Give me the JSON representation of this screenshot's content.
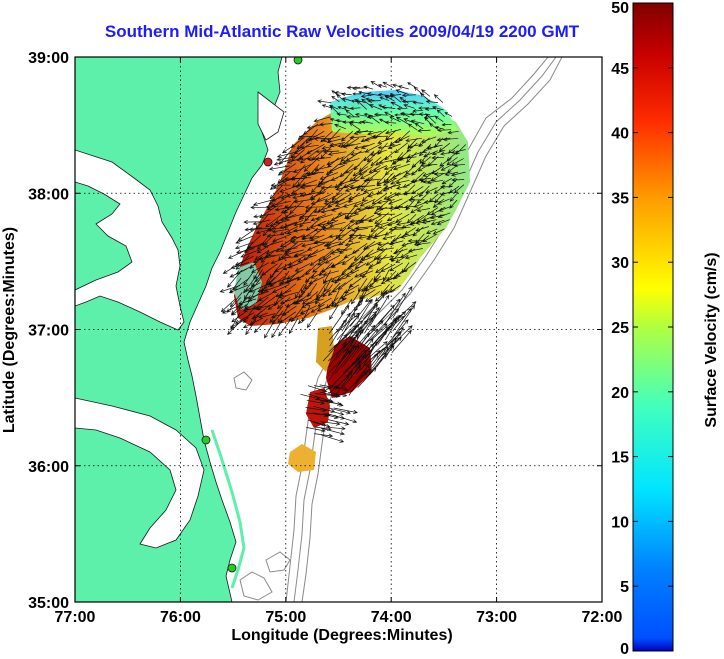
{
  "title": "Southern Mid-Atlantic Raw Velocities 2009/04/19 2200 GMT",
  "x_axis": {
    "label": "Longitude (Degrees:Minutes)",
    "ticks": [
      "77:00",
      "76:00",
      "75:00",
      "74:00",
      "73:00",
      "72:00"
    ]
  },
  "y_axis": {
    "label": "Latitude (Degrees:Minutes)",
    "ticks": [
      "39:00",
      "38:00",
      "37:00",
      "36:00",
      "35:00"
    ]
  },
  "colorbar": {
    "label": "Surface Velocity (cm/s)",
    "ticks": [
      "50",
      "45",
      "40",
      "35",
      "30",
      "25",
      "20",
      "15",
      "10",
      "5",
      "0"
    ],
    "range": [
      0,
      50
    ],
    "colormap": "jet"
  },
  "colors": {
    "title": "#1c1cff",
    "land": "#5cf0aa",
    "bathymetry": "#8a8a8a",
    "grid": "#000000",
    "site_marker": "#22cc22"
  },
  "map": {
    "lon_range": [
      -77,
      -72
    ],
    "lat_range": [
      35,
      39
    ],
    "grid": "dotted"
  }
}
